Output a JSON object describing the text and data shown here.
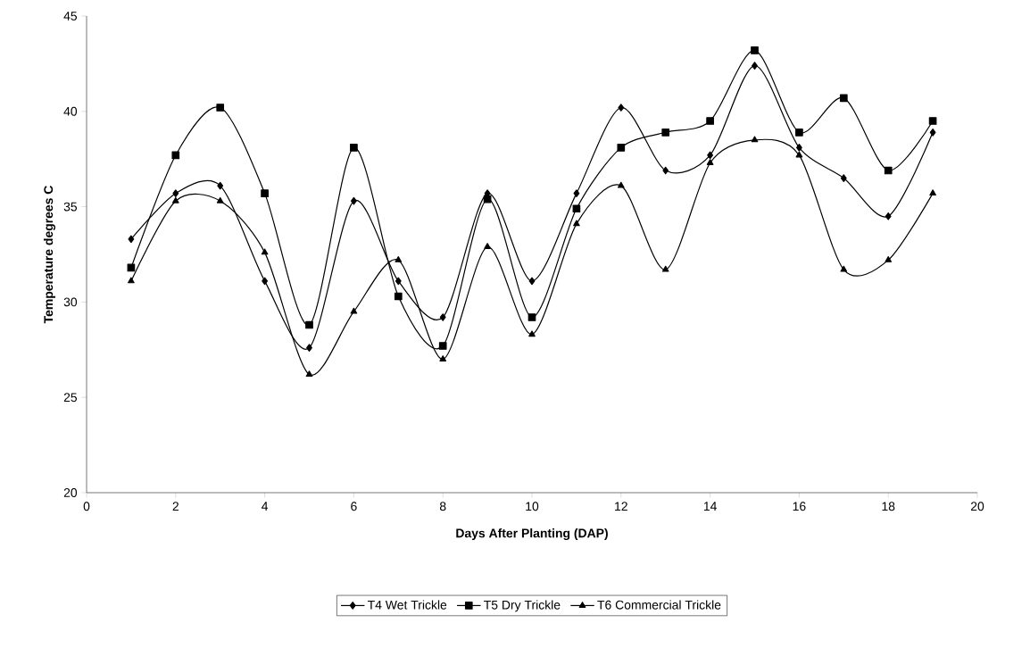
{
  "chart_data": {
    "type": "line",
    "xlabel": "Days After Planting (DAP)",
    "ylabel": "Temperature degrees C",
    "x": [
      1,
      2,
      3,
      4,
      5,
      6,
      7,
      8,
      9,
      10,
      11,
      12,
      13,
      14,
      15,
      16,
      17,
      18,
      19
    ],
    "series": [
      {
        "name": "T4 Wet Trickle",
        "color": "#000000",
        "marker": "diamond",
        "values": [
          33.3,
          35.7,
          36.1,
          31.1,
          27.6,
          35.3,
          31.1,
          29.2,
          35.7,
          31.1,
          35.7,
          40.2,
          36.9,
          37.7,
          42.4,
          38.1,
          36.5,
          34.5,
          38.9
        ]
      },
      {
        "name": "T5 Dry Trickle",
        "color": "#000000",
        "marker": "square",
        "values": [
          31.8,
          37.7,
          40.2,
          35.7,
          28.8,
          38.1,
          30.3,
          27.7,
          35.4,
          29.2,
          34.9,
          38.1,
          38.9,
          39.5,
          43.2,
          38.9,
          40.7,
          36.9,
          39.5
        ]
      },
      {
        "name": "T6 Commercial Trickle",
        "color": "#000000",
        "marker": "triangle",
        "values": [
          31.1,
          35.3,
          35.3,
          32.6,
          26.2,
          29.5,
          32.2,
          27.0,
          32.9,
          28.3,
          34.1,
          36.1,
          31.7,
          37.3,
          38.5,
          37.7,
          31.7,
          32.2,
          35.7
        ]
      }
    ],
    "xlim": [
      0,
      20
    ],
    "xticks": [
      0,
      2,
      4,
      6,
      8,
      10,
      12,
      14,
      16,
      18,
      20
    ],
    "ylim": [
      20,
      45
    ],
    "yticks": [
      20,
      25,
      30,
      35,
      40,
      45
    ],
    "legend": "bottom"
  }
}
